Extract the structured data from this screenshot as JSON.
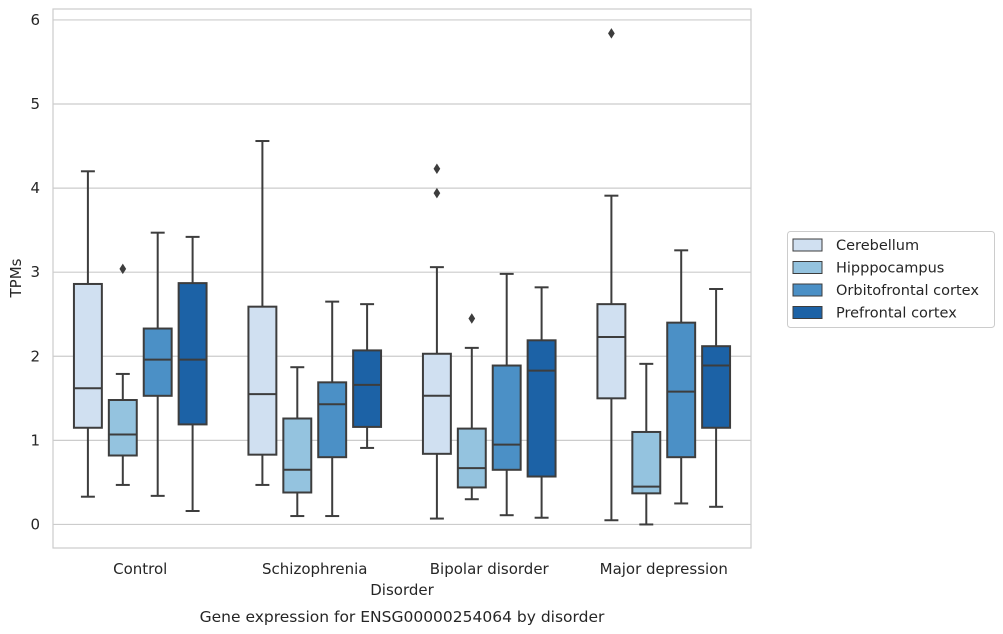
{
  "figure": {
    "caption": "Gene expression for ENSG00000254064 by disorder"
  },
  "chart_data": {
    "type": "boxplot",
    "xlabel": "Disorder",
    "ylabel": "TPMs",
    "ylim": [
      -0.28,
      6.13
    ],
    "yticks": [
      0,
      1,
      2,
      3,
      4,
      5,
      6
    ],
    "grid": true,
    "legend_position": "right",
    "categories": [
      "Control",
      "Schizophrenia",
      "Bipolar disorder",
      "Major depression"
    ],
    "series": [
      {
        "name": "Cerebellum",
        "color": "#d0e0f1",
        "boxes": [
          {
            "min": 0.33,
            "q1": 1.15,
            "median": 1.62,
            "q3": 2.86,
            "max": 4.2,
            "outliers": []
          },
          {
            "min": 0.47,
            "q1": 0.83,
            "median": 1.55,
            "q3": 2.59,
            "max": 4.56,
            "outliers": []
          },
          {
            "min": 0.07,
            "q1": 0.84,
            "median": 1.53,
            "q3": 2.03,
            "max": 3.06,
            "outliers": [
              3.94,
              4.23
            ]
          },
          {
            "min": 0.05,
            "q1": 1.5,
            "median": 2.23,
            "q3": 2.62,
            "max": 3.91,
            "outliers": [
              5.84
            ]
          }
        ]
      },
      {
        "name": "Hipppocampus",
        "color": "#94c3df",
        "boxes": [
          {
            "min": 0.47,
            "q1": 0.82,
            "median": 1.07,
            "q3": 1.48,
            "max": 1.79,
            "outliers": [
              3.04
            ]
          },
          {
            "min": 0.1,
            "q1": 0.38,
            "median": 0.65,
            "q3": 1.26,
            "max": 1.87,
            "outliers": []
          },
          {
            "min": 0.3,
            "q1": 0.44,
            "median": 0.67,
            "q3": 1.14,
            "max": 2.1,
            "outliers": [
              2.45
            ]
          },
          {
            "min": 0.0,
            "q1": 0.37,
            "median": 0.45,
            "q3": 1.1,
            "max": 1.91,
            "outliers": []
          }
        ]
      },
      {
        "name": "Orbitofrontal cortex",
        "color": "#4b90c6",
        "boxes": [
          {
            "min": 0.34,
            "q1": 1.53,
            "median": 1.96,
            "q3": 2.33,
            "max": 3.47,
            "outliers": []
          },
          {
            "min": 0.1,
            "q1": 0.8,
            "median": 1.43,
            "q3": 1.69,
            "max": 2.65,
            "outliers": []
          },
          {
            "min": 0.11,
            "q1": 0.65,
            "median": 0.95,
            "q3": 1.89,
            "max": 2.98,
            "outliers": []
          },
          {
            "min": 0.25,
            "q1": 0.8,
            "median": 1.58,
            "q3": 2.4,
            "max": 3.26,
            "outliers": []
          }
        ]
      },
      {
        "name": "Prefrontal cortex",
        "color": "#1c62a6",
        "boxes": [
          {
            "min": 0.16,
            "q1": 1.19,
            "median": 1.96,
            "q3": 2.87,
            "max": 3.42,
            "outliers": []
          },
          {
            "min": 0.91,
            "q1": 1.16,
            "median": 1.66,
            "q3": 2.07,
            "max": 2.62,
            "outliers": []
          },
          {
            "min": 0.08,
            "q1": 0.57,
            "median": 1.83,
            "q3": 2.19,
            "max": 2.82,
            "outliers": []
          },
          {
            "min": 0.21,
            "q1": 1.15,
            "median": 1.89,
            "q3": 2.12,
            "max": 2.8,
            "outliers": []
          }
        ]
      }
    ]
  }
}
